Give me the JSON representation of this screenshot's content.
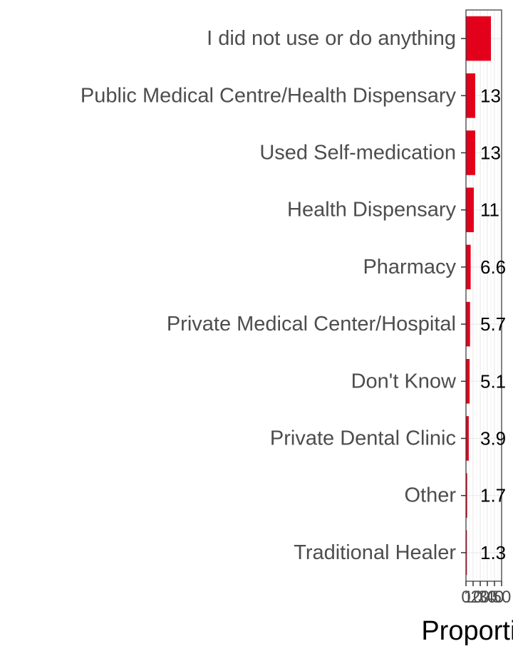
{
  "chart_data": {
    "type": "bar",
    "orientation": "horizontal",
    "categories": [
      "I did not use or do anything",
      "Public Medical Centre/Health Dispensary",
      "Used Self-medication",
      "Health Dispensary",
      "Pharmacy",
      "Private Medical Center/Hospital",
      "Don't Know",
      "Private Dental Clinic",
      "Other",
      "Traditional Healer"
    ],
    "values": [
      35,
      13,
      13,
      11,
      6.6,
      5.7,
      5.1,
      3.9,
      1.7,
      1.3
    ],
    "data_labels": [
      "",
      "13",
      "13",
      "11",
      "6.6",
      "5.7",
      "5.1",
      "3.9",
      "1.7",
      "1.3"
    ],
    "xlabel": "Proportion",
    "ylabel": "",
    "xlim": [
      0,
      50
    ],
    "x_ticks": [
      "0",
      "10",
      "20",
      "30",
      "40",
      "50"
    ],
    "grid": true,
    "legend": "none",
    "colors": {
      "bar": "#e3001b",
      "panel_background": "#ffffff",
      "grid": "#ebebeb",
      "panel_border": "#333333"
    }
  }
}
